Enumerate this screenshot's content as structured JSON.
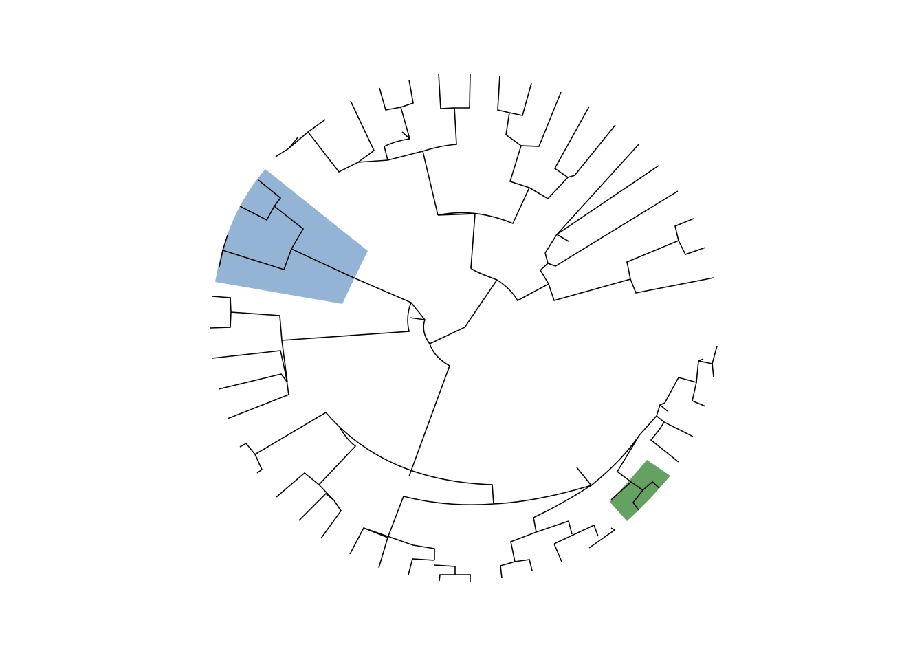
{
  "diagram": {
    "kind": "circular phylogenetic tree (dendrogram)",
    "labels_shown": false,
    "branch_color": "#000000",
    "background": "#ffffff",
    "highlights": [
      {
        "name": "blue-clade",
        "color": "#6f9bc6",
        "opacity": 0.75
      },
      {
        "name": "green-clade",
        "color": "#3f8a3c",
        "opacity": 0.8
      }
    ]
  }
}
